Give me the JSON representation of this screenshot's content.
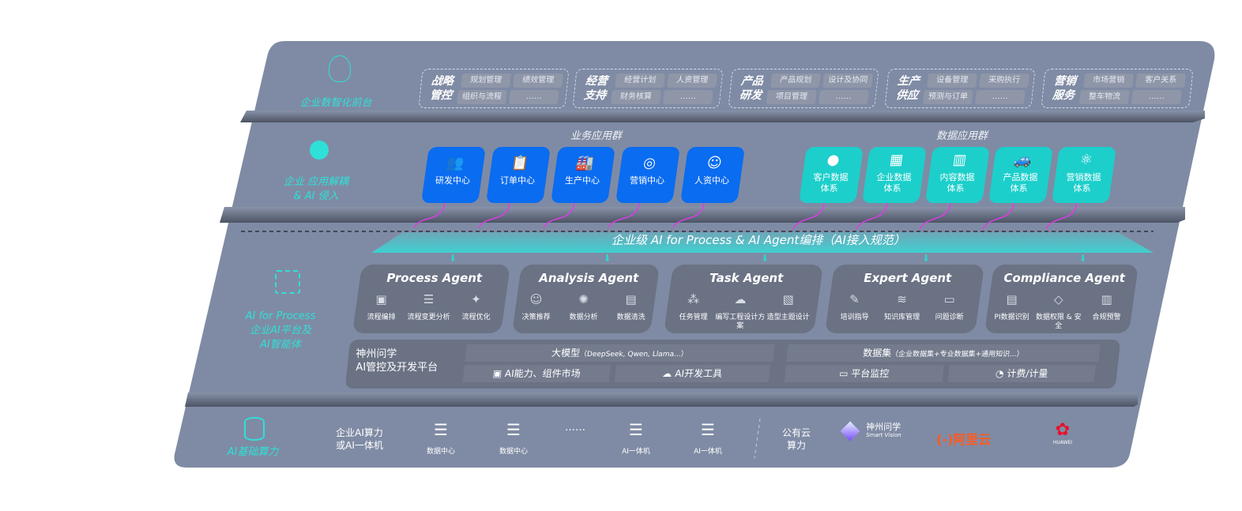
{
  "colors": {
    "panel": "#7f8ba4",
    "band": "#505868",
    "business_card": "#0a6cf0",
    "data_card": "#1ccfcb",
    "accent_cyan": "#2fe0d8",
    "arrow": "#e03ce8"
  },
  "front": {
    "label": "企业数智化前台",
    "icon": "brain-icon",
    "groups": [
      {
        "title": "战略管控",
        "items": [
          "规划管理",
          "绩效管理",
          "组织与流程",
          "……"
        ]
      },
      {
        "title": "经营支持",
        "items": [
          "经营计划",
          "人资管理",
          "财务核算",
          "……"
        ]
      },
      {
        "title": "产品研发",
        "items": [
          "产品规划",
          "设计及协同",
          "项目管理",
          "……"
        ]
      },
      {
        "title": "生产供应",
        "items": [
          "设备管理",
          "采购执行",
          "预测与订单",
          "……"
        ]
      },
      {
        "title": "营销服务",
        "items": [
          "市场营销",
          "客户关系",
          "整车物流",
          "……"
        ]
      }
    ]
  },
  "apps": {
    "label_line1": "企业 应用解耦",
    "label_line2": "& AI 侵入",
    "icon": "molecule-icon",
    "business_title": "业务应用群",
    "business": [
      {
        "label": "研发中心",
        "icon": "team-icon"
      },
      {
        "label": "订单中心",
        "icon": "clipboard-icon"
      },
      {
        "label": "生产中心",
        "icon": "factory-icon"
      },
      {
        "label": "营销中心",
        "icon": "target-icon"
      },
      {
        "label": "人资中心",
        "icon": "people-icon"
      }
    ],
    "data_title": "数据应用群",
    "data": [
      {
        "label1": "客户数据",
        "label2": "体系",
        "icon": "user-icon"
      },
      {
        "label1": "企业数据",
        "label2": "体系",
        "icon": "building-icon"
      },
      {
        "label1": "内容数据",
        "label2": "体系",
        "icon": "books-icon"
      },
      {
        "label1": "产品数据",
        "label2": "体系",
        "icon": "car-icon"
      },
      {
        "label1": "营销数据",
        "label2": "体系",
        "icon": "atom-icon"
      }
    ]
  },
  "orchestration": {
    "banner": "企业级 AI for Process & AI Agent编排（AI接入规范）"
  },
  "ai_platform": {
    "label_line1": "AI for Process",
    "label_line2": "企业AI平台及",
    "label_line3": "AI智能体",
    "icon": "face-scan-icon",
    "agents": [
      {
        "title": "Process Agent",
        "items": [
          "流程编排",
          "流程变更分析",
          "流程优化"
        ]
      },
      {
        "title": "Analysis Agent",
        "items": [
          "决策推荐",
          "数据分析",
          "数据清洗"
        ]
      },
      {
        "title": "Task Agent",
        "items": [
          "任务管理",
          "编写工程设计方案",
          "造型主题设计"
        ]
      },
      {
        "title": "Expert Agent",
        "items": [
          "培训指导",
          "知识库管理",
          "问题诊断"
        ]
      },
      {
        "title": "Compliance Agent",
        "items": [
          "PI数据识别",
          "数据权限 & 安全",
          "合规预警"
        ]
      }
    ],
    "platform": {
      "name_line1": "神州问学",
      "name_line2": "AI管控及开发平台",
      "model_title": "大模型",
      "model_note": "（DeepSeek, Qwen, Llama...）",
      "dataset_title": "数据集",
      "dataset_note": "（企业数据集+专业数据集+通用知识...）",
      "tools": [
        "AI能力、组件市场",
        "AI开发工具",
        "平台监控",
        "计费/计量"
      ]
    }
  },
  "compute": {
    "label": "AI基础算力",
    "icon": "database-icon",
    "private_label_line1": "企业AI算力",
    "private_label_line2": "或AI一体机",
    "items": [
      "数据中心",
      "数据中心",
      "……",
      "AI一体机",
      "AI一体机"
    ],
    "public_label_line1": "公有云",
    "public_label_line2": "算力",
    "vendors": [
      {
        "name": "神州问学",
        "sub": "Smart Vision"
      },
      {
        "name": "阿里云",
        "mark": "(-)"
      },
      {
        "name": "HUAWEI"
      }
    ]
  }
}
